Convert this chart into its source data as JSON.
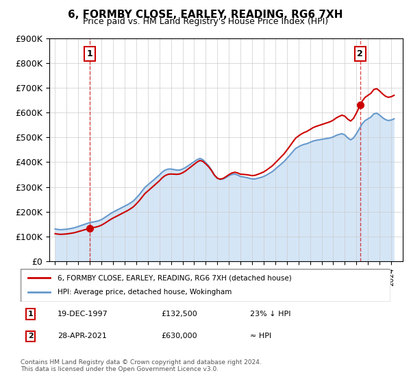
{
  "title": "6, FORMBY CLOSE, EARLEY, READING, RG6 7XH",
  "subtitle": "Price paid vs. HM Land Registry's House Price Index (HPI)",
  "ylabel": "",
  "ylim": [
    0,
    900000
  ],
  "yticks": [
    0,
    100000,
    200000,
    300000,
    400000,
    500000,
    600000,
    700000,
    800000,
    900000
  ],
  "ytick_labels": [
    "£0",
    "£100K",
    "£200K",
    "£300K",
    "£400K",
    "£500K",
    "£600K",
    "£700K",
    "£800K",
    "£900K"
  ],
  "sale1_date": "19-DEC-1997",
  "sale1_price": 132500,
  "sale1_label": "1",
  "sale1_year": 1997.97,
  "sale2_date": "28-APR-2021",
  "sale2_price": 630000,
  "sale2_label": "2",
  "sale2_year": 2021.32,
  "legend_line1": "6, FORMBY CLOSE, EARLEY, READING, RG6 7XH (detached house)",
  "legend_line2": "HPI: Average price, detached house, Wokingham",
  "table_row1": [
    "1",
    "19-DEC-1997",
    "£132,500",
    "23% ↓ HPI"
  ],
  "table_row2": [
    "2",
    "28-APR-2021",
    "£630,000",
    "≈ HPI"
  ],
  "footer": "Contains HM Land Registry data © Crown copyright and database right 2024.\nThis data is licensed under the Open Government Licence v3.0.",
  "line_color_price": "#cc0000",
  "line_color_hpi": "#6699cc",
  "hpi_fill_color": "#aaccee",
  "background_color": "#ffffff",
  "grid_color": "#cccccc",
  "dashed_line_color": "#cc0000",
  "hpi_data": {
    "years": [
      1995.0,
      1995.25,
      1995.5,
      1995.75,
      1996.0,
      1996.25,
      1996.5,
      1996.75,
      1997.0,
      1997.25,
      1997.5,
      1997.75,
      1998.0,
      1998.25,
      1998.5,
      1998.75,
      1999.0,
      1999.25,
      1999.5,
      1999.75,
      2000.0,
      2000.25,
      2000.5,
      2000.75,
      2001.0,
      2001.25,
      2001.5,
      2001.75,
      2002.0,
      2002.25,
      2002.5,
      2002.75,
      2003.0,
      2003.25,
      2003.5,
      2003.75,
      2004.0,
      2004.25,
      2004.5,
      2004.75,
      2005.0,
      2005.25,
      2005.5,
      2005.75,
      2006.0,
      2006.25,
      2006.5,
      2006.75,
      2007.0,
      2007.25,
      2007.5,
      2007.75,
      2008.0,
      2008.25,
      2008.5,
      2008.75,
      2009.0,
      2009.25,
      2009.5,
      2009.75,
      2010.0,
      2010.25,
      2010.5,
      2010.75,
      2011.0,
      2011.25,
      2011.5,
      2011.75,
      2012.0,
      2012.25,
      2012.5,
      2012.75,
      2013.0,
      2013.25,
      2013.5,
      2013.75,
      2014.0,
      2014.25,
      2014.5,
      2014.75,
      2015.0,
      2015.25,
      2015.5,
      2015.75,
      2016.0,
      2016.25,
      2016.5,
      2016.75,
      2017.0,
      2017.25,
      2017.5,
      2017.75,
      2018.0,
      2018.25,
      2018.5,
      2018.75,
      2019.0,
      2019.25,
      2019.5,
      2019.75,
      2020.0,
      2020.25,
      2020.5,
      2020.75,
      2021.0,
      2021.25,
      2021.5,
      2021.75,
      2022.0,
      2022.25,
      2022.5,
      2022.75,
      2023.0,
      2023.25,
      2023.5,
      2023.75,
      2024.0,
      2024.25
    ],
    "values": [
      130000,
      128000,
      127000,
      128000,
      129000,
      131000,
      133000,
      136000,
      140000,
      144000,
      148000,
      152000,
      156000,
      158000,
      160000,
      163000,
      168000,
      175000,
      183000,
      191000,
      198000,
      204000,
      210000,
      216000,
      222000,
      228000,
      235000,
      243000,
      255000,
      268000,
      283000,
      298000,
      308000,
      318000,
      328000,
      338000,
      348000,
      360000,
      368000,
      372000,
      372000,
      370000,
      368000,
      368000,
      372000,
      378000,
      386000,
      394000,
      402000,
      410000,
      415000,
      410000,
      398000,
      385000,
      368000,
      348000,
      335000,
      330000,
      332000,
      338000,
      345000,
      350000,
      352000,
      348000,
      342000,
      340000,
      338000,
      335000,
      332000,
      332000,
      335000,
      338000,
      342000,
      348000,
      355000,
      362000,
      372000,
      382000,
      392000,
      402000,
      415000,
      428000,
      442000,
      455000,
      462000,
      468000,
      472000,
      475000,
      480000,
      485000,
      488000,
      490000,
      492000,
      494000,
      496000,
      498000,
      502000,
      508000,
      512000,
      515000,
      510000,
      498000,
      490000,
      498000,
      515000,
      535000,
      555000,
      568000,
      575000,
      582000,
      595000,
      598000,
      590000,
      580000,
      572000,
      568000,
      570000,
      575000
    ]
  },
  "price_data": {
    "years": [
      1997.97,
      2021.32
    ],
    "values": [
      132500,
      630000
    ]
  }
}
